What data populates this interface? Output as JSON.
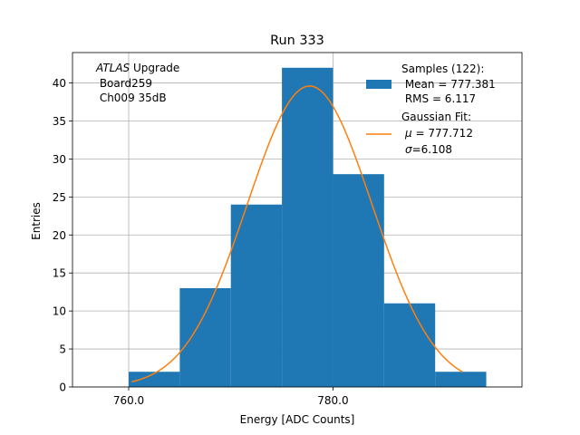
{
  "chart_data": {
    "type": "bar",
    "title": "Run 333",
    "xlabel": "Energy [ADC Counts]",
    "ylabel": "Entries",
    "xlim": [
      754.5,
      798.5
    ],
    "ylim": [
      0,
      44
    ],
    "x_ticks": [
      760,
      780
    ],
    "x_tick_labels": [
      "760.0",
      "780.0"
    ],
    "y_ticks": [
      0,
      5,
      10,
      15,
      20,
      25,
      30,
      35,
      40
    ],
    "y_tick_labels": [
      "0",
      "5",
      "10",
      "15",
      "20",
      "25",
      "30",
      "35",
      "40"
    ],
    "grid": true,
    "bin_edges": [
      760,
      765,
      770,
      775,
      780,
      785,
      790,
      795
    ],
    "values": [
      2,
      13,
      24,
      42,
      28,
      11,
      2
    ],
    "bar_color": "#1f77b4",
    "fit": {
      "type": "gaussian",
      "mu": 777.712,
      "sigma": 6.108,
      "amplitude": 39.6,
      "x_range": [
        760.3,
        792.7
      ],
      "color": "#ff7f0e"
    },
    "annotation": {
      "line1_italic": "ATLAS",
      "line1_rest": " Upgrade",
      "line2": " Board259",
      "line3": " Ch009 35dB"
    },
    "legend": {
      "position": "upper right",
      "samples": [
        "Samples (122):",
        " Mean = 777.381",
        " RMS = 6.117"
      ],
      "fit_title": "Gaussian Fit:",
      "fit_mu_symbol": "μ",
      "fit_mu_value": " = 777.712",
      "fit_sigma_symbol": "σ",
      "fit_sigma_value": "=6.108"
    }
  }
}
